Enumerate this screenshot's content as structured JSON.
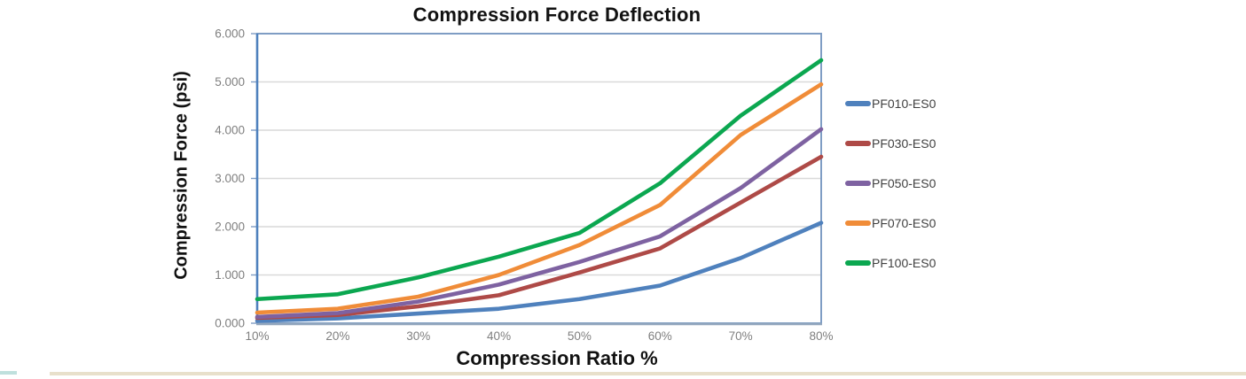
{
  "chart_data": {
    "type": "line",
    "title": "Compression Force Deflection",
    "xlabel": "Compression Ratio %",
    "ylabel": "Compression Force  (psi)",
    "categories": [
      "10%",
      "20%",
      "30%",
      "40%",
      "50%",
      "60%",
      "70%",
      "80%"
    ],
    "y_ticks": [
      "6.000",
      "5.000",
      "4.000",
      "3.000",
      "2.000",
      "1.000",
      "0.000"
    ],
    "ylim": [
      0,
      6
    ],
    "grid": "horizontal",
    "legend_position": "right",
    "series": [
      {
        "name": "PF010-ES0",
        "color": "#4F81BD",
        "values": [
          0.05,
          0.1,
          0.2,
          0.3,
          0.5,
          0.78,
          1.35,
          2.08
        ]
      },
      {
        "name": "PF030-ES0",
        "color": "#AE4A47",
        "values": [
          0.11,
          0.17,
          0.35,
          0.58,
          1.05,
          1.55,
          2.5,
          3.45
        ]
      },
      {
        "name": "PF050-ES0",
        "color": "#7E62A1",
        "values": [
          0.13,
          0.21,
          0.45,
          0.8,
          1.27,
          1.8,
          2.8,
          4.02
        ]
      },
      {
        "name": "PF070-ES0",
        "color": "#F08C38",
        "values": [
          0.22,
          0.3,
          0.55,
          1.0,
          1.62,
          2.45,
          3.9,
          4.95
        ]
      },
      {
        "name": "PF100-ES0",
        "color": "#0BA750",
        "values": [
          0.5,
          0.6,
          0.95,
          1.38,
          1.87,
          2.9,
          4.3,
          5.45
        ]
      }
    ]
  },
  "frame": {
    "plot_border": "#7F9DC4",
    "left_axis": "#4F81BD",
    "bottom_axis": "#93A7BE",
    "gridline": "#D9D9D9",
    "tick_label": "#7F7F7F",
    "legend_text": "#404040"
  },
  "accents": {
    "bottom_strip": "#E8E0CB",
    "corner_strip": "#BFE0DD"
  }
}
